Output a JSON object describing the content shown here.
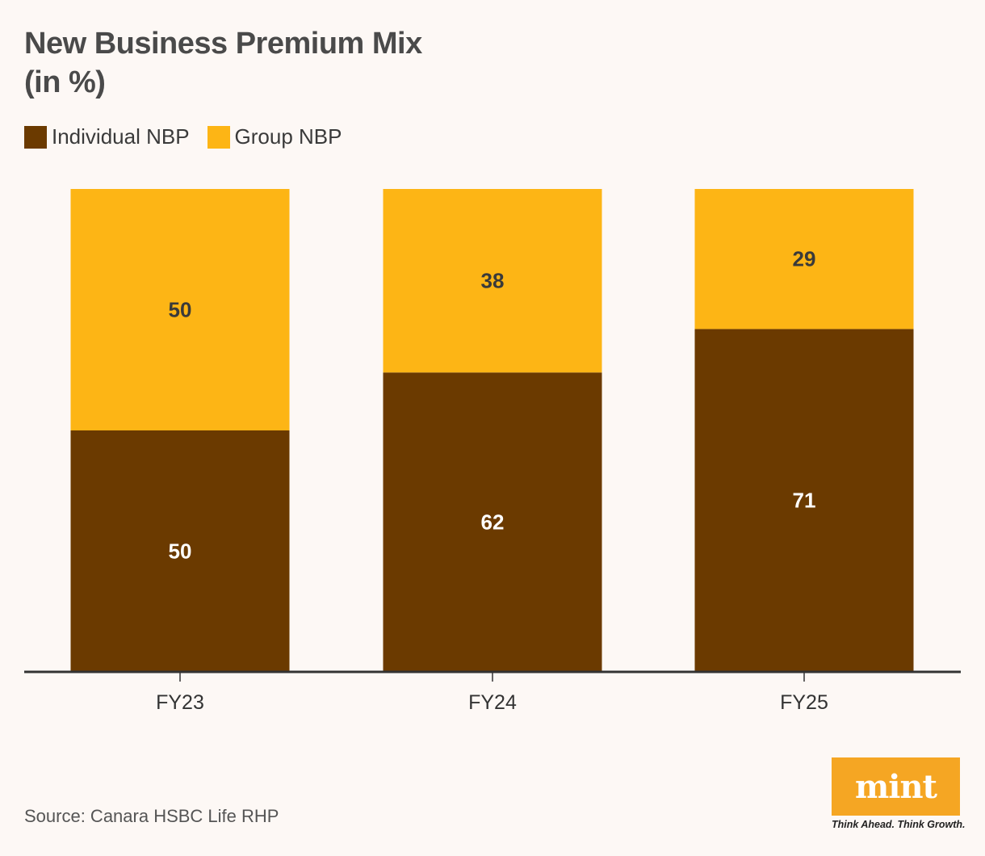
{
  "chart_data": {
    "type": "bar",
    "stacked": true,
    "title_line1": "New Business Premium Mix",
    "title_line2": "(in %)",
    "categories": [
      "FY23",
      "FY24",
      "FY25"
    ],
    "series": [
      {
        "name": "Individual NBP",
        "values": [
          50,
          62,
          71
        ],
        "color": "#6b3a00",
        "label_color": "#ffffff"
      },
      {
        "name": "Group NBP",
        "values": [
          50,
          38,
          29
        ],
        "color": "#fdb515",
        "label_color": "#3a3a3a"
      }
    ],
    "ylim": [
      0,
      100
    ],
    "legend_position": "top-left",
    "grid": false
  },
  "source": "Source: Canara HSBC Life RHP",
  "logo": {
    "text": "mint",
    "tagline": "Think Ahead. Think Growth.",
    "color": "#f5a623"
  }
}
